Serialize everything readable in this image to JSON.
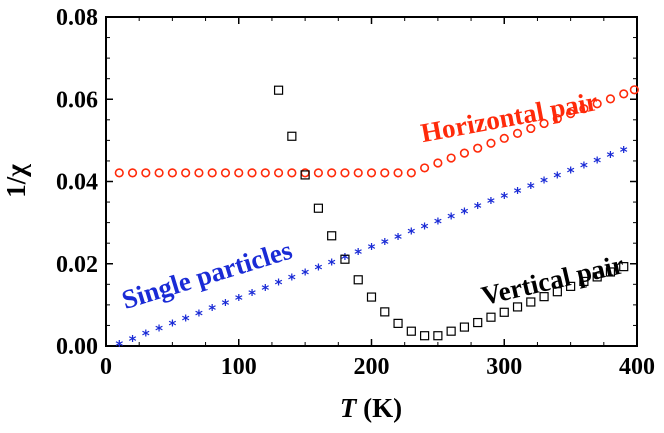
{
  "chart_data": {
    "type": "scatter",
    "xlabel": "T (K)",
    "xlabel_var": "T",
    "xlabel_unit": " (K)",
    "ylabel": "1/χ",
    "xlim": [
      0,
      400
    ],
    "ylim": [
      0,
      0.08
    ],
    "xticks": [
      0,
      100,
      200,
      300,
      400
    ],
    "yticks": [
      0.0,
      0.02,
      0.04,
      0.06,
      0.08
    ],
    "xtick_labels": [
      "0",
      "100",
      "200",
      "300",
      "400"
    ],
    "ytick_labels": [
      "0.00",
      "0.02",
      "0.04",
      "0.06",
      "0.08"
    ],
    "grid": false,
    "series": [
      {
        "name": "Horizontal pair",
        "marker": "circle",
        "color": "#ff2a0a",
        "points": [
          [
            10,
            0.0421
          ],
          [
            20,
            0.0421
          ],
          [
            30,
            0.0421
          ],
          [
            40,
            0.0421
          ],
          [
            50,
            0.0421
          ],
          [
            60,
            0.0421
          ],
          [
            70,
            0.0421
          ],
          [
            80,
            0.0421
          ],
          [
            90,
            0.0421
          ],
          [
            100,
            0.0421
          ],
          [
            110,
            0.0421
          ],
          [
            120,
            0.0421
          ],
          [
            130,
            0.0421
          ],
          [
            140,
            0.0421
          ],
          [
            150,
            0.0421
          ],
          [
            160,
            0.0421
          ],
          [
            170,
            0.0421
          ],
          [
            180,
            0.0421
          ],
          [
            190,
            0.0421
          ],
          [
            200,
            0.0421
          ],
          [
            210,
            0.0421
          ],
          [
            220,
            0.0421
          ],
          [
            230,
            0.0421
          ],
          [
            240,
            0.0433
          ],
          [
            250,
            0.0445
          ],
          [
            260,
            0.0457
          ],
          [
            270,
            0.0469
          ],
          [
            280,
            0.0481
          ],
          [
            290,
            0.0493
          ],
          [
            300,
            0.0505
          ],
          [
            310,
            0.0517
          ],
          [
            320,
            0.0529
          ],
          [
            330,
            0.0541
          ],
          [
            340,
            0.0553
          ],
          [
            350,
            0.0565
          ],
          [
            360,
            0.0577
          ],
          [
            370,
            0.0589
          ],
          [
            380,
            0.0601
          ],
          [
            390,
            0.0613
          ],
          [
            398,
            0.0623
          ]
        ]
      },
      {
        "name": "Single particles",
        "marker": "star",
        "color": "#1a2bd6",
        "points": [
          [
            10,
            0.0005
          ],
          [
            20,
            0.0017
          ],
          [
            30,
            0.003
          ],
          [
            40,
            0.0042
          ],
          [
            50,
            0.0055
          ],
          [
            60,
            0.0067
          ],
          [
            70,
            0.0079
          ],
          [
            80,
            0.0092
          ],
          [
            90,
            0.0104
          ],
          [
            100,
            0.0117
          ],
          [
            110,
            0.0129
          ],
          [
            120,
            0.0141
          ],
          [
            130,
            0.0154
          ],
          [
            140,
            0.0166
          ],
          [
            150,
            0.0179
          ],
          [
            160,
            0.0191
          ],
          [
            170,
            0.0203
          ],
          [
            180,
            0.0216
          ],
          [
            190,
            0.0228
          ],
          [
            200,
            0.0241
          ],
          [
            210,
            0.0253
          ],
          [
            220,
            0.0265
          ],
          [
            230,
            0.0278
          ],
          [
            240,
            0.029
          ],
          [
            250,
            0.0303
          ],
          [
            260,
            0.0315
          ],
          [
            270,
            0.0327
          ],
          [
            280,
            0.034
          ],
          [
            290,
            0.0352
          ],
          [
            300,
            0.0365
          ],
          [
            310,
            0.0377
          ],
          [
            320,
            0.0389
          ],
          [
            330,
            0.0402
          ],
          [
            340,
            0.0414
          ],
          [
            350,
            0.0427
          ],
          [
            360,
            0.0439
          ],
          [
            370,
            0.0451
          ],
          [
            380,
            0.0464
          ],
          [
            390,
            0.0476
          ]
        ]
      },
      {
        "name": "Vertical pair",
        "marker": "square",
        "color": "#000000",
        "points": [
          [
            130,
            0.0622
          ],
          [
            140,
            0.051
          ],
          [
            150,
            0.0416
          ],
          [
            160,
            0.0335
          ],
          [
            170,
            0.0268
          ],
          [
            180,
            0.0211
          ],
          [
            190,
            0.0161
          ],
          [
            200,
            0.0119
          ],
          [
            210,
            0.0083
          ],
          [
            220,
            0.0055
          ],
          [
            230,
            0.0036
          ],
          [
            240,
            0.0025
          ],
          [
            250,
            0.0025
          ],
          [
            260,
            0.0036
          ],
          [
            270,
            0.0046
          ],
          [
            280,
            0.0057
          ],
          [
            290,
            0.007
          ],
          [
            300,
            0.0082
          ],
          [
            310,
            0.0095
          ],
          [
            320,
            0.0107
          ],
          [
            330,
            0.012
          ],
          [
            340,
            0.0132
          ],
          [
            350,
            0.0145
          ],
          [
            360,
            0.0157
          ],
          [
            370,
            0.0168
          ],
          [
            380,
            0.018
          ],
          [
            390,
            0.0193
          ]
        ]
      }
    ],
    "annotations": [
      {
        "text": "Horizontal pair",
        "color": "#ff2a0a",
        "x": 305,
        "y": 0.0535,
        "rotate": -10.5
      },
      {
        "text": "Single particles",
        "color": "#1a2bd6",
        "x": 78,
        "y": 0.0152,
        "rotate": -17
      },
      {
        "text": "Vertical pair",
        "color": "#000000",
        "x": 338,
        "y": 0.0139,
        "rotate": -13
      }
    ]
  }
}
